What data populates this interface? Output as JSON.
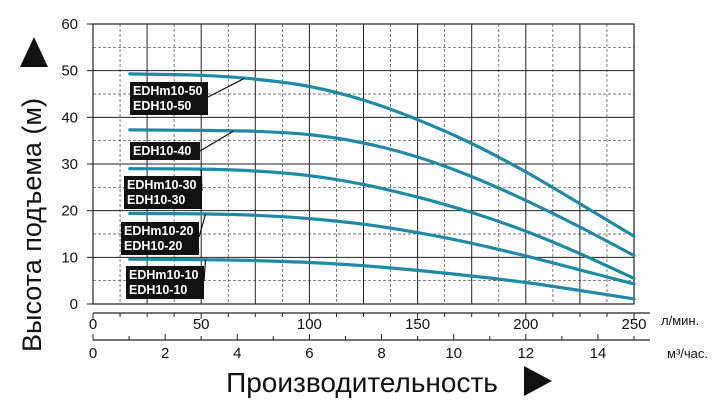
{
  "chart_data": {
    "type": "line",
    "ylabel": "Высота подъема (м)",
    "xlabel": "Производительность",
    "ylim": [
      0,
      60
    ],
    "y_ticks": [
      "0",
      "10",
      "20",
      "30",
      "40",
      "50",
      "60"
    ],
    "xlim": [
      0,
      250
    ],
    "x_ticks": [
      "0",
      "50",
      "100",
      "150",
      "200",
      "250"
    ],
    "x_unit": "л/мин.",
    "x2_ticks": [
      "0",
      "2",
      "4",
      "6",
      "8",
      "10",
      "12",
      "14"
    ],
    "x2_unit": "м³/час.",
    "grid": true,
    "line_color": "#1f8aa4",
    "series": [
      {
        "name": "EDHm10-50 EDH10-50",
        "label_lines": [
          "EDHm10-50",
          "EDH10-50"
        ],
        "x": [
          17,
          50,
          75,
          100,
          125,
          150,
          175,
          200,
          225,
          250
        ],
        "y": [
          49.3,
          49.0,
          48.2,
          46.6,
          43.7,
          39.5,
          34.4,
          28.3,
          21.5,
          14.5
        ]
      },
      {
        "name": "EDH10-40",
        "label_lines": [
          "EDH10-40"
        ],
        "x": [
          17,
          50,
          75,
          100,
          125,
          150,
          175,
          200,
          225,
          250
        ],
        "y": [
          37.3,
          37.2,
          37.0,
          36.3,
          34.5,
          31.5,
          27.3,
          22.2,
          16.5,
          10.4
        ]
      },
      {
        "name": "EDHm10-30 EDH10-30",
        "label_lines": [
          "EDHm10-30",
          "EDH10-30"
        ],
        "x": [
          17,
          50,
          75,
          100,
          125,
          150,
          175,
          200,
          225,
          250
        ],
        "y": [
          29.0,
          28.9,
          28.5,
          27.5,
          25.6,
          22.9,
          19.6,
          15.6,
          10.8,
          5.5
        ]
      },
      {
        "name": "EDHm10-20 EDH10-20",
        "label_lines": [
          "EDHm10-20",
          "EDH10-20"
        ],
        "x": [
          17,
          50,
          75,
          100,
          125,
          150,
          175,
          200,
          225,
          250
        ],
        "y": [
          19.4,
          19.3,
          19.0,
          18.3,
          17.1,
          15.3,
          13.0,
          10.3,
          7.3,
          4.3
        ]
      },
      {
        "name": "EDHm10-10 EDH10-10",
        "label_lines": [
          "EDHm10-10",
          "EDH10-10"
        ],
        "x": [
          17,
          50,
          75,
          100,
          125,
          150,
          175,
          200,
          225,
          250
        ],
        "y": [
          9.6,
          9.5,
          9.3,
          8.9,
          8.2,
          7.2,
          6.0,
          4.6,
          2.9,
          1.1
        ]
      }
    ]
  }
}
